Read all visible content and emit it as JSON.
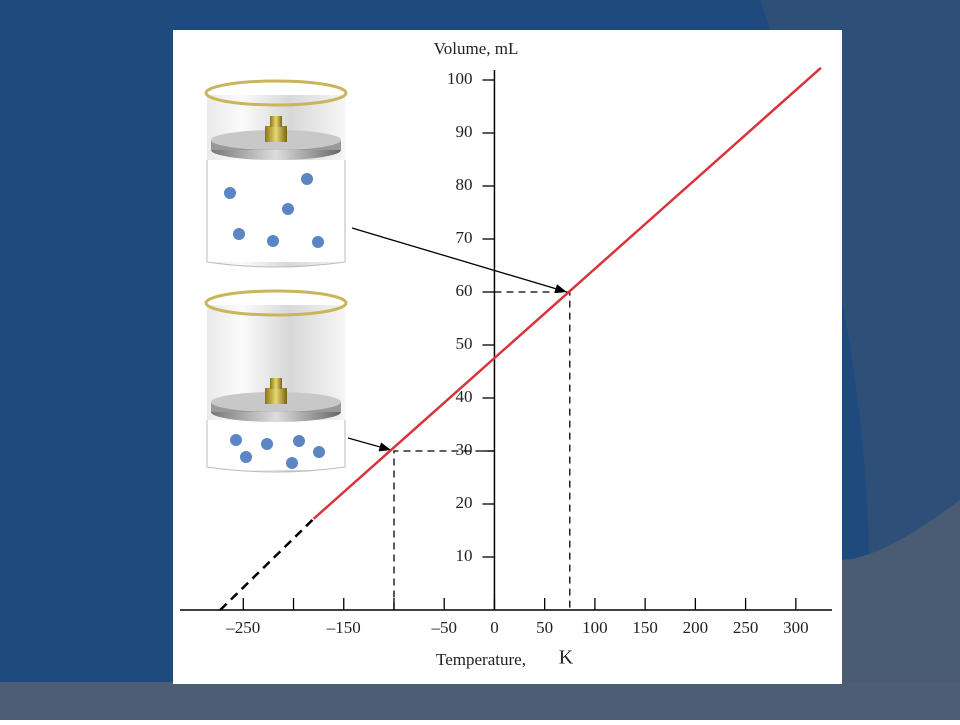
{
  "chart_data": {
    "type": "line",
    "ylabel": "Volume, mL",
    "xlabel": "Temperature,",
    "xunit": "K",
    "xlim": [
      -313,
      336
    ],
    "ylim": [
      0,
      100
    ],
    "xticks": [
      {
        "value": -250,
        "label": "–250"
      },
      {
        "value": -150,
        "label": "–150"
      },
      {
        "value": -50,
        "label": "–50"
      },
      0,
      50,
      100,
      150,
      200,
      250,
      300
    ],
    "xminorticks": [
      -200,
      -100
    ],
    "yticks": [
      10,
      20,
      30,
      40,
      50,
      60,
      70,
      80,
      90,
      100
    ],
    "series": [
      {
        "color": "#000000",
        "dashed": true,
        "x": [
          -273,
          -180
        ],
        "values": [
          0,
          17.2
        ]
      },
      {
        "color": "#d9343a",
        "dashed": false,
        "x": [
          -180,
          325
        ],
        "values": [
          17.2,
          102.3
        ]
      }
    ],
    "points": [
      {
        "x": 75,
        "y": 60
      },
      {
        "x": -100,
        "y": 30
      }
    ]
  }
}
